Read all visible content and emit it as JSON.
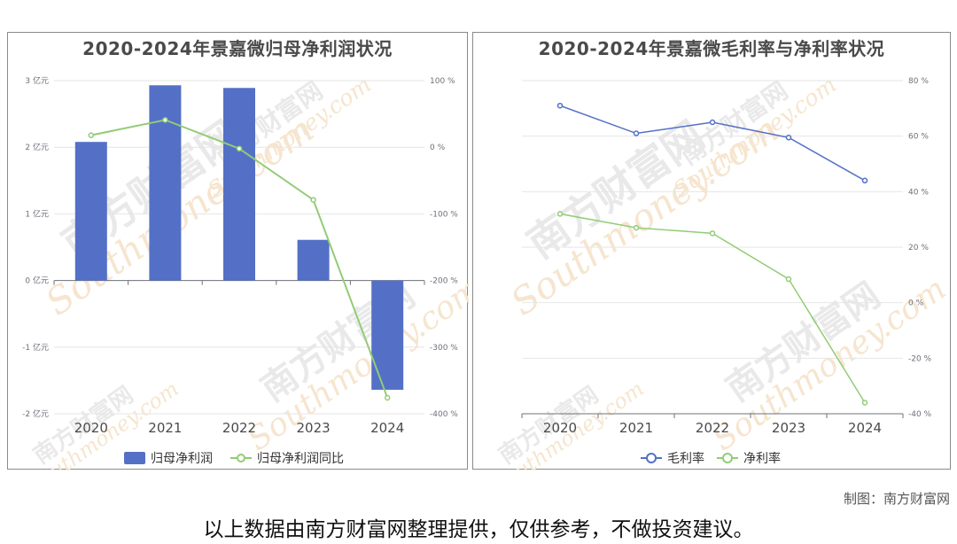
{
  "credit": "制图：南方财富网",
  "disclaimer": "以上数据由南方财富网整理提供，仅供参考，不做投资建议。",
  "watermark": {
    "cn": "南方财富网",
    "en": "Southmoney.com"
  },
  "chart_data": [
    {
      "type": "bar",
      "title": "2020-2024年景嘉微归母净利润状况",
      "categories": [
        "2020",
        "2021",
        "2022",
        "2023",
        "2024"
      ],
      "y_left_ticks": [
        "3 亿元",
        "2 亿元",
        "1 亿元",
        "0 亿元",
        "-1 亿元",
        "-2 亿元"
      ],
      "y_right_ticks": [
        "100 %",
        "0 %",
        "-100 %",
        "-200 %",
        "-300 %",
        "-400 %"
      ],
      "ylim_left": [
        -2,
        3
      ],
      "ylim_right": [
        -400,
        100
      ],
      "legend_position": "bottom",
      "series": [
        {
          "name": "归母净利润",
          "type": "bar",
          "axis": "left",
          "unit": "亿元",
          "color": "#5470c6",
          "values": [
            2.08,
            2.93,
            2.89,
            0.61,
            -1.64
          ]
        },
        {
          "name": "归母净利润同比",
          "type": "line",
          "axis": "right",
          "unit": "%",
          "color": "#91cc75",
          "values": [
            18,
            41,
            -2,
            -79,
            -376
          ]
        }
      ]
    },
    {
      "type": "line",
      "title": "2020-2024年景嘉微毛利率与净利率状况",
      "categories": [
        "2020",
        "2021",
        "2022",
        "2023",
        "2024"
      ],
      "y_right_ticks": [
        "80 %",
        "60 %",
        "40 %",
        "20 %",
        "0 %",
        "-20 %",
        "-40 %"
      ],
      "ylim": [
        -40,
        80
      ],
      "legend_position": "bottom",
      "series": [
        {
          "name": "毛利率",
          "color": "#5470c6",
          "values": [
            71,
            61,
            65,
            59.5,
            44
          ]
        },
        {
          "name": "净利率",
          "color": "#91cc75",
          "values": [
            32,
            27,
            25,
            8.5,
            -36
          ]
        }
      ]
    }
  ]
}
